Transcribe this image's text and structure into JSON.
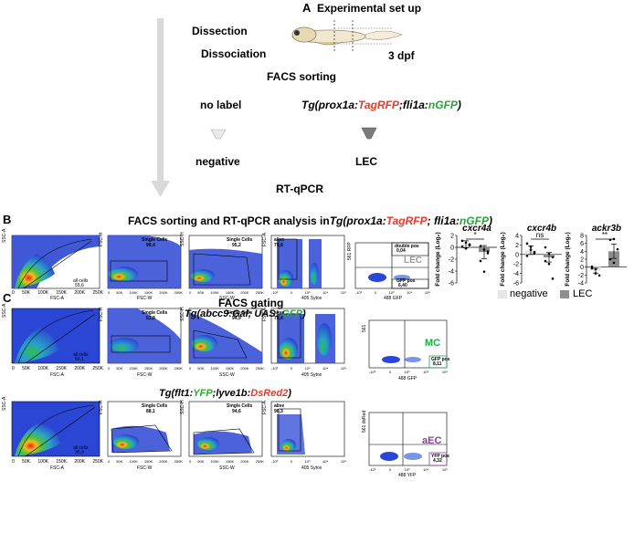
{
  "panel_a": {
    "letter": "A",
    "title": "Experimental set up",
    "dissection": "Dissection",
    "dissociation": "Dissociation",
    "dpf": "3 dpf",
    "facs_sorting": "FACS sorting",
    "no_label": "no label",
    "tg_prefix": "Tg(prox1a:",
    "tg_red": "TagRFP",
    "tg_mid": ";fli1a:",
    "tg_green": "nGFP",
    "tg_suffix": ")",
    "negative": "negative",
    "lec": "LEC",
    "rtqpcr": "RT-qPCR"
  },
  "panel_b": {
    "letter": "B",
    "title_prefix": "FACS sorting and RT-qPCR analysis in",
    "title_tg": "Tg(prox1a:",
    "title_red": "TagRFP",
    "title_mid": "; fli1a:",
    "title_green": "nGFP",
    "title_suffix": ")",
    "plots": {
      "p1": {
        "y": "SSC-A",
        "x": "FSC-A",
        "gate": "all cells",
        "val": "55,6",
        "xticks": [
          "0",
          "50K",
          "100K",
          "150K",
          "200K",
          "250K"
        ]
      },
      "p2": {
        "y": "FSC-H",
        "x": "FSC-W",
        "gate": "Single Cells",
        "val": "99,4",
        "xticks": [
          "0",
          "50K",
          "100K",
          "150K",
          "200K",
          "250K"
        ]
      },
      "p3": {
        "y": "SSC-H",
        "x": "SSC-W",
        "gate": "Single Cells",
        "val": "95,2",
        "xticks": [
          "0",
          "50K",
          "100K",
          "150K",
          "200K",
          "250K"
        ]
      },
      "p4": {
        "y": "FSC-A",
        "x": "405 Sytox",
        "gate": "alive",
        "val": "79,8",
        "xticks": [
          "-10³",
          "0",
          "10³",
          "10⁴",
          "10⁵"
        ]
      },
      "p5": {
        "y": "561 RFP",
        "x": "488 GFP",
        "gate1": "double pos",
        "val1": "0,04",
        "label": "LEC",
        "gate2": "GFP pos",
        "val2": "6,40",
        "xticks": [
          "-10³",
          "0",
          "10³",
          "10⁴",
          "10⁵"
        ]
      }
    }
  },
  "chart_data": [
    {
      "type": "bar",
      "title": "cxcr4a",
      "ylabel": "Fold change (Log₂)",
      "ylim": [
        -6,
        2
      ],
      "yticks": [
        "2",
        "0",
        "-2",
        "-4",
        "-6"
      ],
      "categories": [
        "negative",
        "LEC"
      ],
      "values": [
        0.5,
        -0.8
      ],
      "errors": [
        0.6,
        1.1
      ],
      "points": [
        [
          1.1,
          0.8,
          0.5,
          0.1,
          -0.2,
          0.3
        ],
        [
          0.2,
          -0.4,
          -1.0,
          -2.3,
          -4.1,
          -0.7
        ]
      ],
      "significance": "*"
    },
    {
      "type": "bar",
      "title": "cxcr4b",
      "ylabel": "Fold change (Log₂)",
      "ylim": [
        -6,
        4
      ],
      "yticks": [
        "4",
        "2",
        "0",
        "-2",
        "-4",
        "-6"
      ],
      "categories": [
        "negative",
        "LEC"
      ],
      "values": [
        0.9,
        -0.6
      ],
      "errors": [
        0.9,
        1.0
      ],
      "points": [
        [
          2.3,
          1.6,
          0.2,
          -0.3,
          1.0,
          0.5
        ],
        [
          1.5,
          0.2,
          -0.6,
          -1.4,
          -2.0,
          -5.1
        ]
      ],
      "significance": "ns"
    },
    {
      "type": "bar",
      "title": "ackr3b",
      "ylabel": "Fold change (Log₂)",
      "ylim": [
        -4,
        8
      ],
      "yticks": [
        "8",
        "6",
        "4",
        "2",
        "0",
        "-2",
        "-4"
      ],
      "categories": [
        "negative",
        "LEC"
      ],
      "values": [
        -0.9,
        4.0
      ],
      "errors": [
        0.6,
        1.8
      ],
      "points": [
        [
          -0.3,
          -1.6,
          -2.1,
          0.1,
          -0.5
        ],
        [
          6.9,
          7.1,
          4.5,
          2.0,
          1.1
        ]
      ],
      "significance": "**"
    }
  ],
  "legend": {
    "negative": "negative",
    "lec": "LEC",
    "negative_color": "#e6e6e6",
    "lec_color": "#8e8e8e"
  },
  "panel_c": {
    "letter": "C",
    "title": "FACS gating",
    "row1": {
      "tg_prefix": "Tg(abcc9:Gal; UAS:",
      "tg_green": " GFP",
      "tg_suffix": ")",
      "p1": {
        "y": "SSC-A",
        "x": "FSC-A",
        "gate": "all cells",
        "val": "50,1",
        "xticks": [
          "0",
          "50K",
          "100K",
          "150K",
          "200K",
          "250K"
        ]
      },
      "p2": {
        "y": "FSC-H",
        "x": "FSC-W",
        "gate": "Single Cells",
        "val": "51,9",
        "xticks": [
          "0",
          "50K",
          "100K",
          "150K",
          "200K",
          "250K"
        ]
      },
      "p3": {
        "y": "SSC-H",
        "x": "SSC-W",
        "gate": "Single Cells",
        "val": "94,9",
        "xticks": [
          "0",
          "50K",
          "100K",
          "150K",
          "200K",
          "250K"
        ]
      },
      "p4": {
        "y": "FSC-A",
        "x": "405 Sytox",
        "gate": "alive",
        "val": "76,4",
        "xticks": [
          "-10³",
          "0",
          "10³",
          "10⁴",
          "10⁵"
        ]
      },
      "p5": {
        "y": "561",
        "x": "488 GFP",
        "label": "MC",
        "gate": "GFP pos",
        "val": "8,11",
        "xticks": [
          "-10³",
          "0",
          "10³",
          "10⁴",
          "10⁵"
        ]
      }
    },
    "row2": {
      "tg_prefix": "Tg(flt1:",
      "tg_yfp": "YFP",
      "tg_mid": ";lyve1b:",
      "tg_red": "DsRed2",
      "tg_suffix": ")",
      "p1": {
        "y": "SSC-A",
        "x": "FSC-A",
        "gate": "all cells",
        "val": "35,9",
        "xticks": [
          "0",
          "50K",
          "100K",
          "150K",
          "200K",
          "250K"
        ]
      },
      "p2": {
        "y": "FSC-H",
        "x": "FSC-W",
        "gate": "Single Cells",
        "val": "88,1",
        "xticks": [
          "0",
          "50K",
          "100K",
          "150K",
          "200K",
          "250K"
        ]
      },
      "p3": {
        "y": "SSC-H",
        "x": "SSC-W",
        "gate": "Single Cells",
        "val": "94,6",
        "xticks": [
          "0",
          "50K",
          "100K",
          "150K",
          "200K",
          "250K"
        ]
      },
      "p4": {
        "y": "FSC-A",
        "x": "405 Sytox",
        "gate": "alive",
        "val": "96,3",
        "xticks": [
          "-10³",
          "0",
          "10³",
          "10⁴",
          "10⁵"
        ]
      },
      "p5": {
        "y": "561 dsRed",
        "x": "488 YFP",
        "label": "aEC",
        "gate": "YFP pos",
        "val": "4,32",
        "xticks": [
          "-10³",
          "0",
          "10³",
          "10⁴",
          "10⁵"
        ]
      }
    }
  },
  "colors": {
    "mc": "#1fa84a",
    "aec": "#8e3d9a",
    "arrow": "#d9d9d9"
  }
}
